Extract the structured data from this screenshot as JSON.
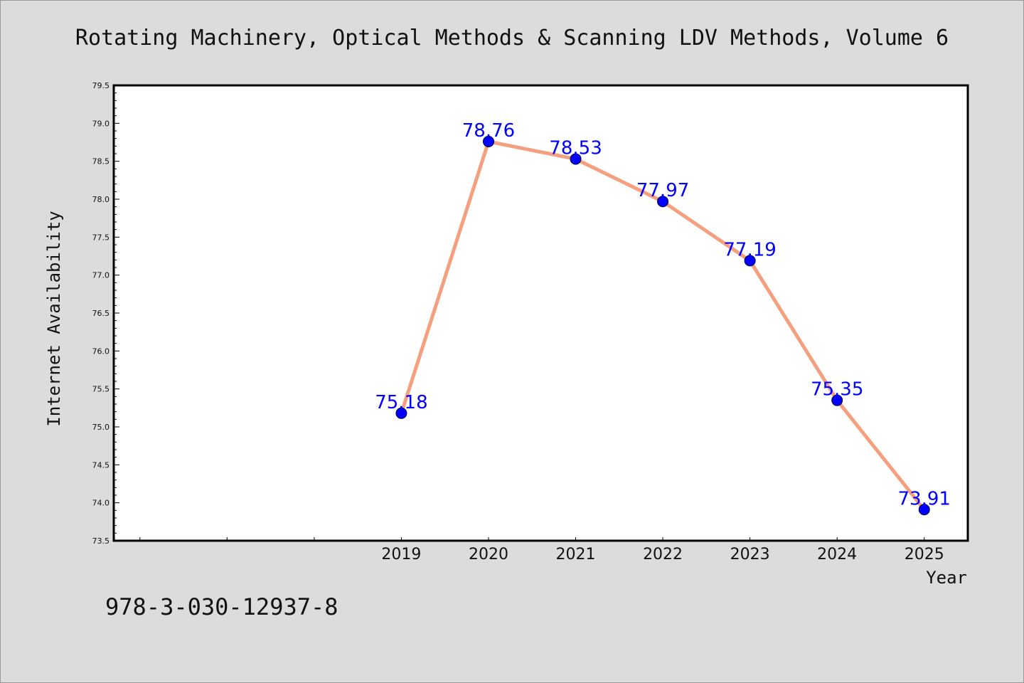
{
  "chart_data": {
    "type": "line",
    "title": "Rotating Machinery, Optical Methods & Scanning LDV Methods, Volume 6",
    "xlabel": "Year",
    "ylabel": "Internet Availability",
    "x": [
      2019,
      2020,
      2021,
      2022,
      2023,
      2024,
      2025
    ],
    "x_tick_labels": [
      "2019",
      "2020",
      "2021",
      "2022",
      "2023",
      "2024",
      "2025"
    ],
    "series": [
      {
        "values": [
          75.18,
          78.76,
          78.53,
          77.97,
          77.19,
          75.35,
          73.91
        ],
        "data_labels": [
          "75.18",
          "78.76",
          "78.53",
          "77.97",
          "77.19",
          "75.35",
          "73.91"
        ],
        "line_color": "#f4a07f",
        "marker_color": "#0000ff"
      }
    ],
    "xlim": [
      2015.7,
      2025.5
    ],
    "ylim": [
      73.5,
      79.5
    ],
    "y_tick_labels": [
      "73.5",
      "74.0",
      "74.5",
      "75.0",
      "75.5",
      "76.0",
      "76.5",
      "77.0",
      "77.5",
      "78.0",
      "78.5",
      "79.0",
      "79.5"
    ],
    "grid": false,
    "legend": "none"
  },
  "footnote": "978-3-030-12937-8",
  "colors": {
    "background": "#dcdcdc",
    "plot_background": "#ffffff",
    "line": "#f4a07f",
    "marker": "#0000ff",
    "data_label": "#0000ff"
  }
}
